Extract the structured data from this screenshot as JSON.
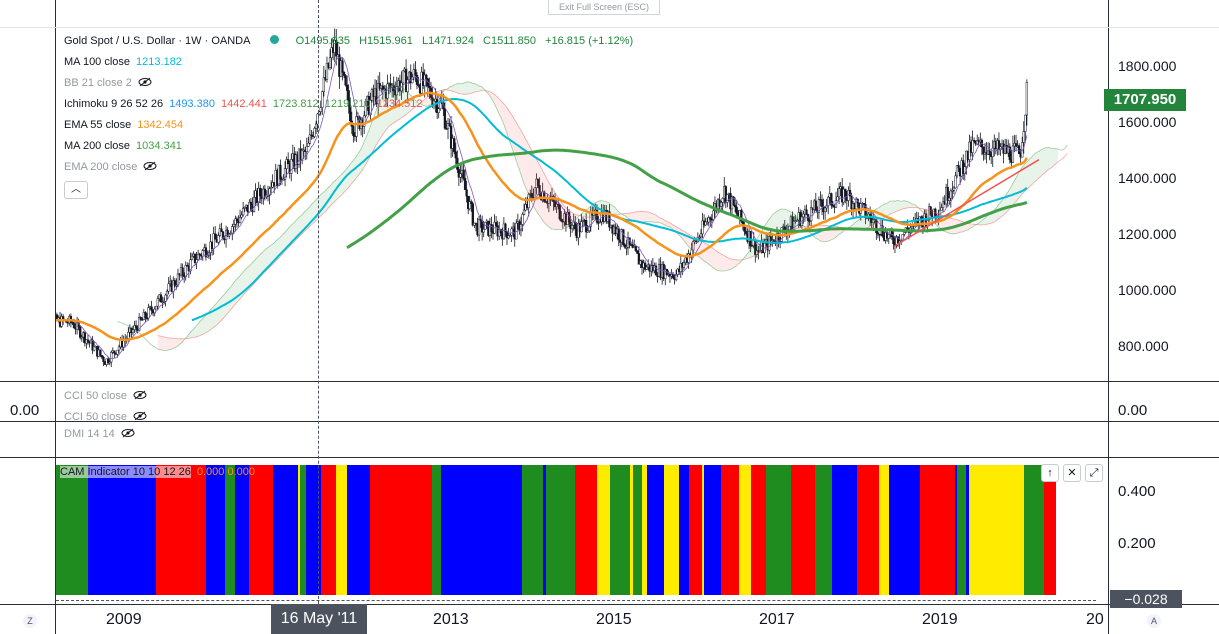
{
  "exit_full_screen": "Exit Full Screen (ESC)",
  "symbol": {
    "title": "Gold Spot / U.S. Dollar · 1W · OANDA",
    "open": "O1495.035",
    "high": "H1515.961",
    "low": "L1471.924",
    "close": "C1511.850",
    "change": "+16.815 (+1.12%)"
  },
  "indicators": [
    {
      "label": "MA 100 close",
      "values": [
        "1213.182"
      ],
      "colors": [
        "#00bcd4"
      ],
      "hidden": false
    },
    {
      "label": "BB 21 close 2",
      "values": [],
      "colors": [],
      "hidden": true
    },
    {
      "label": "Ichimoku 9 26 52 26",
      "values": [
        "1493.380",
        "1442.441",
        "1723.812",
        "1219.210",
        "1234.512"
      ],
      "colors": [
        "#2196f3",
        "#ef5350",
        "#43a047",
        "#43a047",
        "#ef5350"
      ],
      "hidden": false
    },
    {
      "label": "EMA 55 close",
      "values": [
        "1342.454"
      ],
      "colors": [
        "#f7931a"
      ],
      "hidden": false
    },
    {
      "label": "MA 200 close",
      "values": [
        "1034.341"
      ],
      "colors": [
        "#43a047"
      ],
      "hidden": false
    },
    {
      "label": "EMA 200 close",
      "values": [],
      "colors": [],
      "hidden": true
    }
  ],
  "price_axis": [
    "1800.000",
    "1600.000",
    "1400.000",
    "1200.000",
    "1000.000",
    "800.000"
  ],
  "current_price": "1707.950",
  "cci_pane": {
    "labels": [
      "CCI 50 close",
      "CCI 50 close"
    ],
    "axis_value": "0.00",
    "left_value": "0.00"
  },
  "dmi_pane": {
    "label": "DMI 14 14"
  },
  "cam_pane": {
    "label": "CAM Indicator 10 10 12 26",
    "values": "0.000 0.000",
    "axis": [
      "0.400",
      "0.200"
    ],
    "crosshair_value": "−0.028"
  },
  "time_axis": [
    "2009",
    "2013",
    "2015",
    "2017",
    "2019",
    "20"
  ],
  "crosshair_date": "16 May '11",
  "corner_left": "Z",
  "corner_right": "A",
  "colors": {
    "up": "#26a69a",
    "down": "#ef5350",
    "ma100": "#00bcd4",
    "ema55": "#f7931a",
    "ma200": "#43a047",
    "cam_yellow": "#ffeb00",
    "cam_green": "#1e8c1e",
    "cam_red": "#ff0000",
    "cam_blue": "#0000ff"
  },
  "chart_data": {
    "type": "candlestick",
    "x_labels": [
      "2009",
      "2013",
      "2015",
      "2017",
      "2019"
    ],
    "ylim": [
      680,
      1940
    ],
    "close_series": [
      {
        "date": "2008-01",
        "close": 900
      },
      {
        "date": "2008-06",
        "close": 890
      },
      {
        "date": "2008-11",
        "close": 750
      },
      {
        "date": "2009-06",
        "close": 940
      },
      {
        "date": "2009-12",
        "close": 1110
      },
      {
        "date": "2010-06",
        "close": 1240
      },
      {
        "date": "2010-12",
        "close": 1400
      },
      {
        "date": "2011-05",
        "close": 1500
      },
      {
        "date": "2011-09",
        "close": 1880
      },
      {
        "date": "2011-12",
        "close": 1580
      },
      {
        "date": "2012-03",
        "close": 1700
      },
      {
        "date": "2012-09",
        "close": 1770
      },
      {
        "date": "2013-01",
        "close": 1660
      },
      {
        "date": "2013-06",
        "close": 1230
      },
      {
        "date": "2013-12",
        "close": 1210
      },
      {
        "date": "2014-03",
        "close": 1380
      },
      {
        "date": "2014-09",
        "close": 1220
      },
      {
        "date": "2015-01",
        "close": 1280
      },
      {
        "date": "2015-07",
        "close": 1090
      },
      {
        "date": "2015-12",
        "close": 1060
      },
      {
        "date": "2016-07",
        "close": 1360
      },
      {
        "date": "2016-12",
        "close": 1140
      },
      {
        "date": "2017-06",
        "close": 1260
      },
      {
        "date": "2018-01",
        "close": 1350
      },
      {
        "date": "2018-08",
        "close": 1180
      },
      {
        "date": "2019-03",
        "close": 1300
      },
      {
        "date": "2019-08",
        "close": 1520
      },
      {
        "date": "2020-03",
        "close": 1490
      },
      {
        "date": "2020-04",
        "close": 1708
      }
    ]
  }
}
